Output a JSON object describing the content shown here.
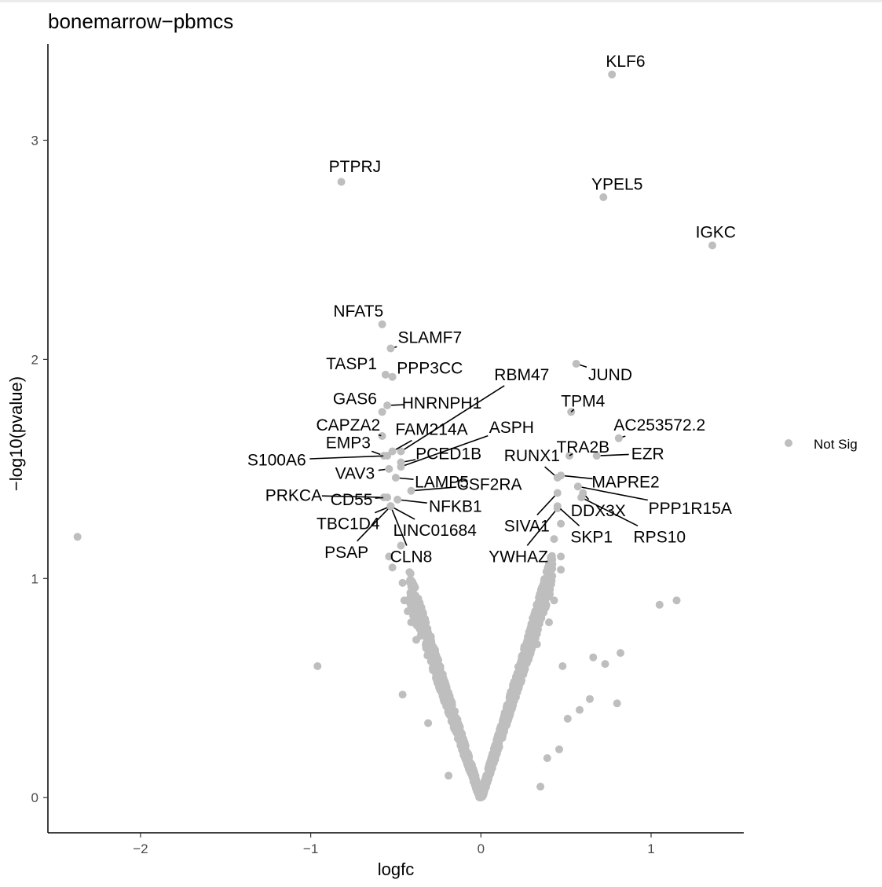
{
  "chart_data": {
    "type": "scatter",
    "title": "bonemarrow−pbmcs",
    "xlabel": "logfc",
    "ylabel": "−log10(pvalue)",
    "xlim": [
      -2.55,
      1.55
    ],
    "ylim": [
      -0.16,
      3.47
    ],
    "x_ticks": [
      {
        "value": -2,
        "label": "−2"
      },
      {
        "value": -1,
        "label": "−1"
      },
      {
        "value": 0,
        "label": "0"
      },
      {
        "value": 1,
        "label": "1"
      }
    ],
    "y_ticks": [
      {
        "value": 0,
        "label": "0"
      },
      {
        "value": 1,
        "label": "1"
      },
      {
        "value": 2,
        "label": "2"
      },
      {
        "value": 3,
        "label": "3"
      }
    ],
    "grid": false,
    "legend": {
      "position": "right",
      "entries": [
        {
          "label": "Not Sig",
          "color": "#bebebe"
        }
      ]
    },
    "point_color": "#bebebe",
    "series": [
      {
        "name": "Not Sig",
        "labeled_points": [
          {
            "label": "KLF6",
            "x": 0.77,
            "y": 3.3,
            "lx": 0.85,
            "ly": 3.36
          },
          {
            "label": "PTPRJ",
            "x": -0.82,
            "y": 2.81,
            "lx": -0.74,
            "ly": 2.88
          },
          {
            "label": "YPEL5",
            "x": 0.72,
            "y": 2.74,
            "lx": 0.8,
            "ly": 2.8
          },
          {
            "label": "IGKC",
            "x": 1.36,
            "y": 2.52,
            "lx": 1.38,
            "ly": 2.58
          },
          {
            "label": "NFAT5",
            "x": -0.58,
            "y": 2.16,
            "lx": -0.72,
            "ly": 2.22
          },
          {
            "label": "SLAMF7",
            "x": -0.53,
            "y": 2.05,
            "lx": -0.3,
            "ly": 2.1
          },
          {
            "label": "TASP1",
            "x": -0.56,
            "y": 1.93,
            "lx": -0.76,
            "ly": 1.98
          },
          {
            "label": "PPP3CC",
            "x": -0.52,
            "y": 1.92,
            "lx": -0.3,
            "ly": 1.96
          },
          {
            "label": "RBM47",
            "x": -0.47,
            "y": 1.58,
            "lx": 0.24,
            "ly": 1.93
          },
          {
            "label": "JUND",
            "x": 0.56,
            "y": 1.98,
            "lx": 0.76,
            "ly": 1.93
          },
          {
            "label": "GAS6",
            "x": -0.58,
            "y": 1.76,
            "lx": -0.74,
            "ly": 1.82
          },
          {
            "label": "HNRNPH1",
            "x": -0.55,
            "y": 1.79,
            "lx": -0.23,
            "ly": 1.8
          },
          {
            "label": "TPM4",
            "x": 0.53,
            "y": 1.76,
            "lx": 0.6,
            "ly": 1.81
          },
          {
            "label": "AC253572.2",
            "x": 0.81,
            "y": 1.64,
            "lx": 1.05,
            "ly": 1.7
          },
          {
            "label": "CAPZA2",
            "x": -0.58,
            "y": 1.65,
            "lx": -0.78,
            "ly": 1.7
          },
          {
            "label": "FAM214A",
            "x": -0.52,
            "y": 1.58,
            "lx": -0.29,
            "ly": 1.68
          },
          {
            "label": "ASPH",
            "x": -0.47,
            "y": 1.51,
            "lx": 0.18,
            "ly": 1.69
          },
          {
            "label": "TRA2B",
            "x": 0.52,
            "y": 1.56,
            "lx": 0.6,
            "ly": 1.6
          },
          {
            "label": "EMP3",
            "x": -0.57,
            "y": 1.56,
            "lx": -0.78,
            "ly": 1.62
          },
          {
            "label": "S100A6",
            "x": -0.55,
            "y": 1.56,
            "lx": -1.2,
            "ly": 1.54
          },
          {
            "label": "PCED1B",
            "x": -0.47,
            "y": 1.53,
            "lx": -0.19,
            "ly": 1.57
          },
          {
            "label": "RUNX1",
            "x": 0.45,
            "y": 1.46,
            "lx": 0.3,
            "ly": 1.56
          },
          {
            "label": "EZR",
            "x": 0.68,
            "y": 1.56,
            "lx": 0.98,
            "ly": 1.57
          },
          {
            "label": "VAV3",
            "x": -0.54,
            "y": 1.5,
            "lx": -0.74,
            "ly": 1.48
          },
          {
            "label": "LAMP5",
            "x": -0.5,
            "y": 1.46,
            "lx": -0.23,
            "ly": 1.44
          },
          {
            "label": "CSF2RA",
            "x": -0.41,
            "y": 1.4,
            "lx": 0.05,
            "ly": 1.43
          },
          {
            "label": "MAPRE2",
            "x": 0.47,
            "y": 1.47,
            "lx": 0.85,
            "ly": 1.44
          },
          {
            "label": "PRKCA",
            "x": -0.57,
            "y": 1.37,
            "lx": -1.1,
            "ly": 1.38
          },
          {
            "label": "CD55",
            "x": -0.55,
            "y": 1.37,
            "lx": -0.76,
            "ly": 1.36
          },
          {
            "label": "NFKB1",
            "x": -0.49,
            "y": 1.36,
            "lx": -0.15,
            "ly": 1.33
          },
          {
            "label": "PPP1R15A",
            "x": 0.57,
            "y": 1.42,
            "lx": 1.23,
            "ly": 1.32
          },
          {
            "label": "DDX3X",
            "x": 0.6,
            "y": 1.39,
            "lx": 0.69,
            "ly": 1.31
          },
          {
            "label": "SIVA1",
            "x": 0.45,
            "y": 1.39,
            "lx": 0.27,
            "ly": 1.24
          },
          {
            "label": "TBC1D4",
            "x": -0.53,
            "y": 1.33,
            "lx": -0.78,
            "ly": 1.25
          },
          {
            "label": "LINC01684",
            "x": -0.53,
            "y": 1.33,
            "lx": -0.27,
            "ly": 1.22
          },
          {
            "label": "SKP1",
            "x": 0.45,
            "y": 1.33,
            "lx": 0.65,
            "ly": 1.19
          },
          {
            "label": "RPS10",
            "x": 0.59,
            "y": 1.37,
            "lx": 1.05,
            "ly": 1.19
          },
          {
            "label": "PSAP",
            "x": -0.53,
            "y": 1.33,
            "lx": -0.79,
            "ly": 1.12
          },
          {
            "label": "CLN8",
            "x": -0.53,
            "y": 1.33,
            "lx": -0.41,
            "ly": 1.1
          },
          {
            "label": "YWHAZ",
            "x": 0.45,
            "y": 1.32,
            "lx": 0.22,
            "ly": 1.1
          }
        ],
        "unlabeled_points": [
          {
            "x": -2.37,
            "y": 1.19
          },
          {
            "x": -0.96,
            "y": 0.6
          },
          {
            "x": 1.05,
            "y": 0.88
          },
          {
            "x": 1.15,
            "y": 0.9
          },
          {
            "x": 0.82,
            "y": 0.66
          },
          {
            "x": 0.73,
            "y": 0.61
          },
          {
            "x": 0.66,
            "y": 0.64
          },
          {
            "x": 0.8,
            "y": 0.43
          },
          {
            "x": 0.64,
            "y": 0.45
          },
          {
            "x": 0.58,
            "y": 0.4
          },
          {
            "x": 0.51,
            "y": 0.36
          },
          {
            "x": 0.48,
            "y": 0.6
          },
          {
            "x": 0.47,
            "y": 1.1
          },
          {
            "x": 0.47,
            "y": 1.25
          },
          {
            "x": 0.43,
            "y": 1.18
          },
          {
            "x": 0.47,
            "y": 1.04
          },
          {
            "x": -0.46,
            "y": 0.47
          },
          {
            "x": -0.54,
            "y": 1.1
          },
          {
            "x": -0.52,
            "y": 1.05
          },
          {
            "x": -0.47,
            "y": 1.15
          },
          {
            "x": -0.46,
            "y": 0.98
          },
          {
            "x": -0.45,
            "y": 0.9
          },
          {
            "x": -0.31,
            "y": 0.34
          },
          {
            "x": -0.19,
            "y": 0.1
          },
          {
            "x": 0.35,
            "y": 0.05
          },
          {
            "x": 0.39,
            "y": 0.18
          },
          {
            "x": 0.46,
            "y": 0.22
          },
          {
            "x": -0.38,
            "y": 0.72
          },
          {
            "x": -0.41,
            "y": 0.8
          },
          {
            "x": -0.43,
            "y": 0.85
          },
          {
            "x": 0.4,
            "y": 0.8
          },
          {
            "x": 0.43,
            "y": 0.9
          },
          {
            "x": 0.36,
            "y": 0.95
          },
          {
            "x": 0.33,
            "y": 0.7
          },
          {
            "x": 0.28,
            "y": 0.63
          }
        ],
        "dense_cloud": {
          "description_free": true,
          "x_range": [
            -0.45,
            0.45
          ],
          "y_range": [
            0,
            1.05
          ]
        }
      }
    ]
  }
}
